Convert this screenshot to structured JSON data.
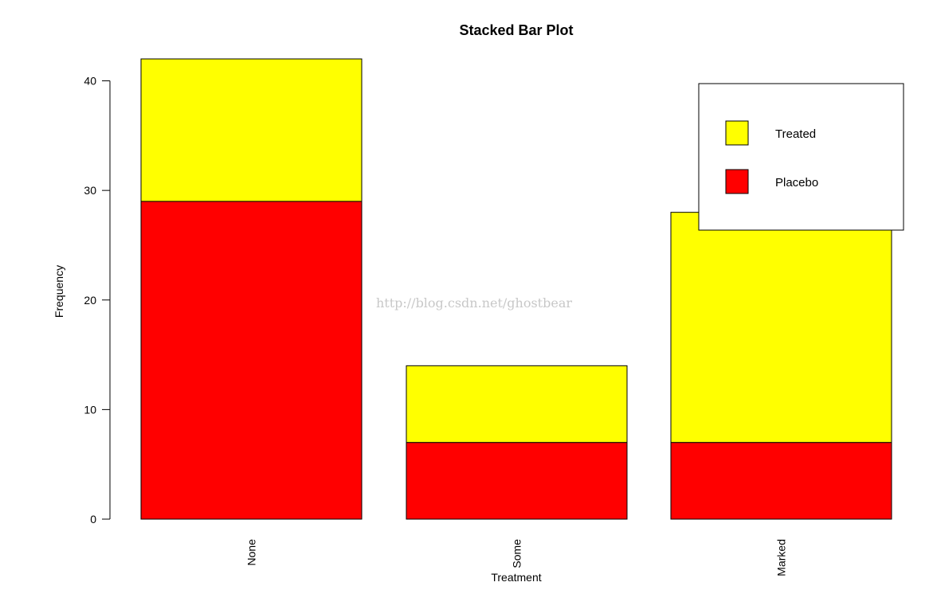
{
  "chart_data": {
    "type": "bar",
    "stacked": true,
    "title": "Stacked Bar Plot",
    "xlabel": "Treatment",
    "ylabel": "Frequency",
    "ylim": [
      0,
      42
    ],
    "y_ticks": [
      0,
      10,
      20,
      30,
      40
    ],
    "categories": [
      "None",
      "Some",
      "Marked"
    ],
    "series": [
      {
        "name": "Placebo",
        "values": [
          29,
          7,
          7
        ],
        "color": "#ff0000"
      },
      {
        "name": "Treated",
        "values": [
          13,
          7,
          21
        ],
        "color": "#ffff00"
      }
    ],
    "legend": {
      "placement": "top-right",
      "entries": [
        {
          "label": "Treated",
          "color": "#ffff00"
        },
        {
          "label": "Placebo",
          "color": "#ff0000"
        }
      ]
    },
    "grid": false
  },
  "watermark": "http://blog.csdn.net/ghostbear"
}
